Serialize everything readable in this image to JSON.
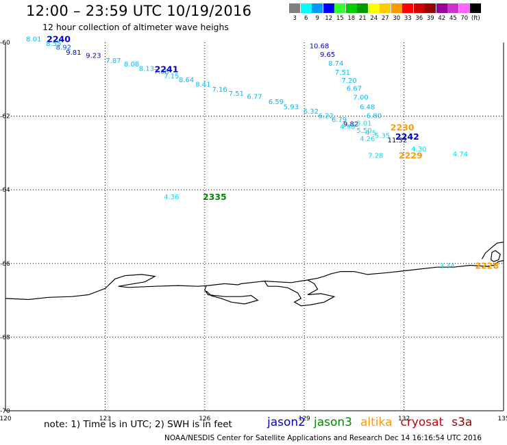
{
  "header": {
    "title": "12:00 – 23:59 UTC 10/19/2016",
    "subtitle": "12 hour collection of altimeter wave heighs"
  },
  "colorbar": {
    "unit": "(ft)",
    "bins": [
      {
        "color": "#808080",
        "label": "3"
      },
      {
        "color": "#00ffff",
        "label": "6"
      },
      {
        "color": "#0099ff",
        "label": "9"
      },
      {
        "color": "#0000ff",
        "label": "12"
      },
      {
        "color": "#33ff33",
        "label": "15"
      },
      {
        "color": "#00cc00",
        "label": "18"
      },
      {
        "color": "#009900",
        "label": "21"
      },
      {
        "color": "#ffff00",
        "label": "24"
      },
      {
        "color": "#ffcc00",
        "label": "27"
      },
      {
        "color": "#ff9900",
        "label": "30"
      },
      {
        "color": "#ff0000",
        "label": "33"
      },
      {
        "color": "#cc0000",
        "label": "36"
      },
      {
        "color": "#990000",
        "label": "39"
      },
      {
        "color": "#990099",
        "label": "42"
      },
      {
        "color": "#cc33cc",
        "label": "45"
      },
      {
        "color": "#ff66ff",
        "label": "70"
      },
      {
        "color": "#000000",
        "label": ""
      }
    ]
  },
  "map": {
    "lon_min": 120,
    "lon_max": 135,
    "lat_max": -59.8,
    "lat_min": -70.1,
    "lon_ticks": [
      "120",
      "123",
      "126",
      "129",
      "132",
      "135"
    ],
    "lat_ticks": [
      "-60",
      "-62",
      "-64",
      "-66",
      "-68",
      "-70"
    ],
    "coastline": [
      [
        [
          120.0,
          -66.95
        ],
        [
          120.7,
          -66.98
        ],
        [
          121.3,
          -66.92
        ],
        [
          122.0,
          -66.9
        ],
        [
          122.5,
          -66.85
        ],
        [
          123.0,
          -66.68
        ],
        [
          123.3,
          -66.42
        ],
        [
          123.6,
          -66.33
        ],
        [
          124.1,
          -66.3
        ],
        [
          124.5,
          -66.35
        ],
        [
          124.2,
          -66.5
        ],
        [
          123.4,
          -66.62
        ],
        [
          123.7,
          -66.65
        ],
        [
          124.5,
          -66.62
        ],
        [
          125.2,
          -66.6
        ],
        [
          125.8,
          -66.62
        ],
        [
          126.1,
          -66.6
        ],
        [
          126.6,
          -66.55
        ],
        [
          127.0,
          -66.58
        ],
        [
          127.1,
          -66.55
        ],
        [
          127.8,
          -66.48
        ],
        [
          128.6,
          -66.52
        ],
        [
          129.1,
          -66.45
        ],
        [
          129.4,
          -66.4
        ],
        [
          129.6,
          -66.35
        ],
        [
          129.8,
          -66.28
        ],
        [
          130.1,
          -66.22
        ],
        [
          130.5,
          -66.22
        ],
        [
          130.9,
          -66.3
        ],
        [
          131.5,
          -66.25
        ],
        [
          132.0,
          -66.2
        ],
        [
          132.5,
          -66.15
        ],
        [
          133.0,
          -66.1
        ],
        [
          133.5,
          -66.1
        ],
        [
          134.0,
          -66.05
        ],
        [
          134.5,
          -66.08
        ],
        [
          134.7,
          -66.05
        ],
        [
          134.85,
          -65.95
        ],
        [
          135.0,
          -65.92
        ]
      ],
      [
        [
          126.05,
          -66.6
        ],
        [
          126.0,
          -66.72
        ],
        [
          126.1,
          -66.85
        ],
        [
          126.6,
          -66.9
        ],
        [
          127.1,
          -66.9
        ],
        [
          127.4,
          -66.87
        ],
        [
          127.6,
          -67.0
        ],
        [
          127.2,
          -67.1
        ],
        [
          126.8,
          -67.05
        ],
        [
          126.5,
          -66.95
        ],
        [
          126.2,
          -66.88
        ],
        [
          126.05,
          -66.75
        ]
      ],
      [
        [
          127.8,
          -66.48
        ],
        [
          127.9,
          -66.62
        ],
        [
          128.2,
          -66.62
        ],
        [
          128.5,
          -66.66
        ],
        [
          128.8,
          -66.8
        ],
        [
          128.9,
          -66.95
        ],
        [
          128.7,
          -67.05
        ],
        [
          128.9,
          -67.15
        ],
        [
          129.2,
          -67.12
        ],
        [
          129.6,
          -67.05
        ],
        [
          129.9,
          -66.9
        ],
        [
          129.5,
          -66.82
        ],
        [
          129.1,
          -66.85
        ],
        [
          129.4,
          -66.7
        ],
        [
          129.3,
          -66.55
        ],
        [
          129.1,
          -66.45
        ]
      ],
      [
        [
          134.35,
          -65.88
        ],
        [
          134.45,
          -65.72
        ],
        [
          134.6,
          -65.6
        ],
        [
          134.8,
          -65.45
        ],
        [
          135.0,
          -65.42
        ]
      ],
      [
        [
          134.62,
          -65.9
        ],
        [
          134.65,
          -65.7
        ],
        [
          134.75,
          -65.65
        ],
        [
          134.9,
          -65.75
        ],
        [
          134.85,
          -65.9
        ],
        [
          134.7,
          -65.95
        ],
        [
          134.62,
          -65.9
        ]
      ]
    ],
    "observations": [
      {
        "lon": 120.85,
        "lat": -59.9,
        "value": "8.01",
        "color": "#00bbff"
      },
      {
        "lon": 121.45,
        "lat": -60.02,
        "value": "8.55",
        "color": "#00bbff"
      },
      {
        "lon": 121.75,
        "lat": -60.12,
        "value": "8.92",
        "color": "#0055ff"
      },
      {
        "lon": 122.05,
        "lat": -60.26,
        "value": "9.81",
        "color": "#0000cc"
      },
      {
        "lon": 122.65,
        "lat": -60.34,
        "value": "9.23",
        "color": "#0000cc"
      },
      {
        "lon": 123.25,
        "lat": -60.48,
        "value": "7.87",
        "color": "#00bbff"
      },
      {
        "lon": 123.8,
        "lat": -60.58,
        "value": "8.08",
        "color": "#00bbff"
      },
      {
        "lon": 124.25,
        "lat": -60.7,
        "value": "8.13",
        "color": "#00bbff"
      },
      {
        "lon": 124.7,
        "lat": -60.78,
        "value": "7.68",
        "color": "#00bbff"
      },
      {
        "lon": 125.0,
        "lat": -60.9,
        "value": "7.15",
        "color": "#00bbff"
      },
      {
        "lon": 125.45,
        "lat": -61.0,
        "value": "8.64",
        "color": "#00bbff"
      },
      {
        "lon": 125.95,
        "lat": -61.12,
        "value": "8.41",
        "color": "#00bbff"
      },
      {
        "lon": 126.45,
        "lat": -61.26,
        "value": "7.16",
        "color": "#00bbff"
      },
      {
        "lon": 126.95,
        "lat": -61.38,
        "value": "7.51",
        "color": "#00bbff"
      },
      {
        "lon": 127.5,
        "lat": -61.46,
        "value": "6.77",
        "color": "#00bbff"
      },
      {
        "lon": 128.15,
        "lat": -61.6,
        "value": "6.59",
        "color": "#00bbff"
      },
      {
        "lon": 128.6,
        "lat": -61.74,
        "value": "5.93",
        "color": "#00bbff"
      },
      {
        "lon": 129.2,
        "lat": -61.86,
        "value": "6.32",
        "color": "#00bbff"
      },
      {
        "lon": 129.65,
        "lat": -61.98,
        "value": "6.22",
        "color": "#00bbff"
      },
      {
        "lon": 130.05,
        "lat": -62.08,
        "value": "6.79",
        "color": "#00bbff"
      },
      {
        "lon": 130.4,
        "lat": -62.2,
        "value": "9.82",
        "color": "#0000cc"
      },
      {
        "lon": 130.3,
        "lat": -62.28,
        "value": "4.98",
        "color": "#00ddee"
      },
      {
        "lon": 130.8,
        "lat": -62.18,
        "value": "5.01",
        "color": "#00ddee"
      },
      {
        "lon": 130.8,
        "lat": -62.38,
        "value": "5.50",
        "color": "#00ddee"
      },
      {
        "lon": 131.0,
        "lat": -62.44,
        "value": "4.5",
        "color": "#00ddee"
      },
      {
        "lon": 131.35,
        "lat": -62.52,
        "value": "5.35",
        "color": "#00ddee"
      },
      {
        "lon": 130.9,
        "lat": -62.6,
        "value": "4.26",
        "color": "#00ddee"
      },
      {
        "lon": 131.8,
        "lat": -62.64,
        "value": "11.32",
        "color": "#000080"
      },
      {
        "lon": 132.45,
        "lat": -62.88,
        "value": "4.30",
        "color": "#00ddee"
      },
      {
        "lon": 133.7,
        "lat": -63.02,
        "value": "4.74",
        "color": "#00ddee"
      },
      {
        "lon": 131.15,
        "lat": -63.06,
        "value": "7.28",
        "color": "#00ddee"
      },
      {
        "lon": 129.45,
        "lat": -60.08,
        "value": "10.68",
        "color": "#0000cc"
      },
      {
        "lon": 129.7,
        "lat": -60.32,
        "value": "9.65",
        "color": "#0000cc"
      },
      {
        "lon": 129.95,
        "lat": -60.56,
        "value": "8.74",
        "color": "#00bbff"
      },
      {
        "lon": 130.15,
        "lat": -60.8,
        "value": "7.51",
        "color": "#00bbff"
      },
      {
        "lon": 130.35,
        "lat": -61.02,
        "value": "7.20",
        "color": "#00bbff"
      },
      {
        "lon": 130.5,
        "lat": -61.24,
        "value": "6.67",
        "color": "#00bbff"
      },
      {
        "lon": 130.7,
        "lat": -61.48,
        "value": "7.00",
        "color": "#00bbff"
      },
      {
        "lon": 130.9,
        "lat": -61.74,
        "value": "6.48",
        "color": "#00bbff"
      },
      {
        "lon": 131.1,
        "lat": -61.98,
        "value": "6.80",
        "color": "#00bbff"
      },
      {
        "lon": 125.0,
        "lat": -64.18,
        "value": "4.36",
        "color": "#00ddee"
      },
      {
        "lon": 133.3,
        "lat": -66.05,
        "value": "3.34",
        "color": "#00ddee"
      }
    ],
    "passes": [
      {
        "lon": 121.6,
        "lat": -59.9,
        "id": "2240",
        "color": "#0000cc"
      },
      {
        "lon": 124.85,
        "lat": -60.72,
        "id": "2241",
        "color": "#0000cc"
      },
      {
        "lon": 131.95,
        "lat": -62.3,
        "id": "2230",
        "color": "#ff9900"
      },
      {
        "lon": 132.1,
        "lat": -62.55,
        "id": "2242",
        "color": "#0000cc"
      },
      {
        "lon": 132.2,
        "lat": -63.06,
        "id": "2229",
        "color": "#ff9900"
      },
      {
        "lon": 126.3,
        "lat": -64.18,
        "id": "2335",
        "color": "#008800"
      },
      {
        "lon": 134.5,
        "lat": -66.05,
        "id": "2228",
        "color": "#ff9900"
      }
    ]
  },
  "footer": {
    "note": "note:  1) Time is in UTC;  2) SWH is in feet",
    "satellites": [
      {
        "name": "jason2",
        "color": "#0000cc"
      },
      {
        "name": "jason3",
        "color": "#008800"
      },
      {
        "name": "altika",
        "color": "#ff9900"
      },
      {
        "name": "cryosat",
        "color": "#cc0000"
      },
      {
        "name": "s3a",
        "color": "#990000"
      }
    ],
    "credit": "NOAA/NESDIS Center for Satellite Applications and Research     Dec 14 16:16:54 UTC 2016"
  }
}
